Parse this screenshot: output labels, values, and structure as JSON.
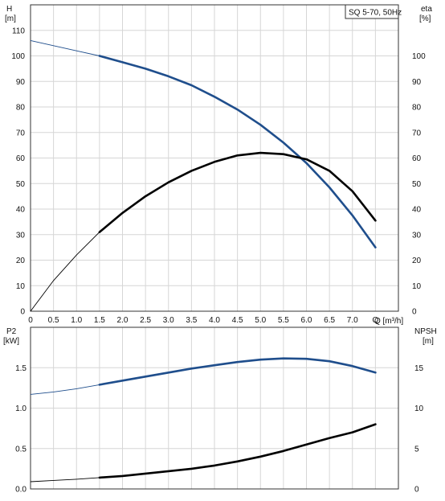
{
  "chart_data": [
    {
      "type": "line",
      "title": "SQ 5-70, 50Hz",
      "xlabel": "Q [m³/h]",
      "ylabel_left": "H",
      "ylabel_left_unit": "[m]",
      "ylabel_right": "eta",
      "ylabel_right_unit": "[%]",
      "xlim": [
        0,
        8
      ],
      "ylim_left": [
        0,
        120
      ],
      "ylim_right": [
        0,
        120
      ],
      "x_ticks": [
        "0",
        "0.5",
        "1.0",
        "1.5",
        "2.0",
        "2.5",
        "3.0",
        "3.5",
        "4.0",
        "4.5",
        "5.0",
        "5.5",
        "6.0",
        "6.5",
        "7.0",
        "Q"
      ],
      "y_ticks_left": [
        "0",
        "10",
        "20",
        "30",
        "40",
        "50",
        "60",
        "70",
        "80",
        "90",
        "100",
        "110"
      ],
      "y_ticks_right": [
        "0",
        "10",
        "20",
        "30",
        "40",
        "50",
        "60",
        "70",
        "80",
        "90",
        "100"
      ],
      "grid": true,
      "series": [
        {
          "color": "#1f4e8c",
          "axis": "left",
          "x": [
            0,
            0.5,
            1.0,
            1.5,
            2.0,
            2.5,
            3.0,
            3.5,
            4.0,
            4.5,
            5.0,
            5.5,
            6.0,
            6.5,
            7.0,
            7.5
          ],
          "values": [
            106,
            104,
            102,
            100,
            97.5,
            95,
            92,
            88.5,
            84,
            79,
            73,
            66,
            58,
            48.5,
            37.5,
            25
          ],
          "operating_range": [
            1.5,
            7.5
          ]
        },
        {
          "color": "#000000",
          "axis": "right",
          "x": [
            0,
            0.5,
            1.0,
            1.5,
            2.0,
            2.5,
            3.0,
            3.5,
            4.0,
            4.5,
            5.0,
            5.5,
            6.0,
            6.5,
            7.0,
            7.5
          ],
          "values": [
            0,
            12,
            22,
            31,
            38.5,
            45,
            50.5,
            55,
            58.5,
            61,
            62,
            61.5,
            59.5,
            55,
            47,
            35.5
          ],
          "operating_range": [
            1.5,
            7.5
          ]
        }
      ]
    },
    {
      "type": "line",
      "xlim": [
        0,
        8
      ],
      "ylabel_left": "P2",
      "ylabel_left_unit": "[kW]",
      "ylabel_right": "NPSH",
      "ylabel_right_unit": "[m]",
      "ylim_left": [
        0,
        2
      ],
      "ylim_right": [
        0,
        20
      ],
      "y_ticks_left": [
        "0.0",
        "0.5",
        "1.0",
        "1.5"
      ],
      "y_ticks_right": [
        "0",
        "5",
        "10",
        "15"
      ],
      "grid": true,
      "series": [
        {
          "color": "#1f4e8c",
          "axis": "left",
          "x": [
            0,
            0.5,
            1.0,
            1.5,
            2.0,
            2.5,
            3.0,
            3.5,
            4.0,
            4.5,
            5.0,
            5.5,
            6.0,
            6.5,
            7.0,
            7.5
          ],
          "values": [
            1.17,
            1.2,
            1.24,
            1.29,
            1.34,
            1.39,
            1.44,
            1.49,
            1.53,
            1.57,
            1.6,
            1.615,
            1.61,
            1.58,
            1.52,
            1.44
          ],
          "operating_range": [
            1.5,
            7.5
          ]
        },
        {
          "color": "#000000",
          "axis": "right",
          "x": [
            0,
            0.5,
            1.0,
            1.5,
            2.0,
            2.5,
            3.0,
            3.5,
            4.0,
            4.5,
            5.0,
            5.5,
            6.0,
            6.5,
            7.0,
            7.5
          ],
          "values": [
            0.9,
            1.05,
            1.2,
            1.4,
            1.6,
            1.9,
            2.2,
            2.5,
            2.9,
            3.4,
            4.0,
            4.7,
            5.5,
            6.3,
            7.0,
            8.0
          ],
          "operating_range": [
            1.5,
            7.5
          ]
        }
      ]
    }
  ]
}
